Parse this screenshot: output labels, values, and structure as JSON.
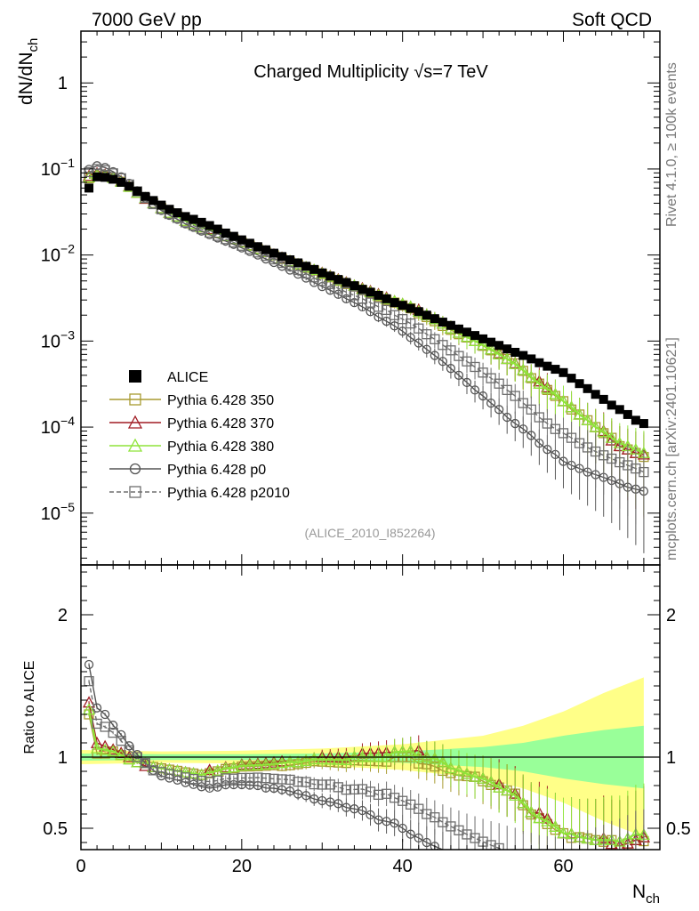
{
  "header": {
    "left": "7000 GeV pp",
    "right": "Soft QCD"
  },
  "side": {
    "rivet": "Rivet 4.1.0, ≥ 100k events",
    "mcplots": "mcplots.cern.ch [arXiv:2401.10621]"
  },
  "chart_data": [
    {
      "type": "scatter",
      "title_main": "Charged Multiplicity ",
      "title_sqrt": "√s",
      "title_rest": "=7 TeV",
      "ylabel_main": "dN/dN",
      "ylabel_sub": "ch",
      "yscale": "log",
      "ylim": [
        2.5e-06,
        4
      ],
      "xlim": [
        0,
        72
      ],
      "yticks": [
        {
          "v": 1e-05,
          "base": "10",
          "exp": "−5"
        },
        {
          "v": 0.0001,
          "base": "10",
          "exp": "−4"
        },
        {
          "v": 0.001,
          "base": "10",
          "exp": "−3"
        },
        {
          "v": 0.01,
          "base": "10",
          "exp": "−2"
        },
        {
          "v": 0.1,
          "base": "10",
          "exp": "−1"
        },
        {
          "v": 1,
          "base": "1",
          "exp": ""
        }
      ],
      "analysis_tag": "(ALICE_2010_I852264)",
      "legend": [
        {
          "name": "ALICE",
          "color": "#000000",
          "marker": "square-filled",
          "line": "none"
        },
        {
          "name": "Pythia 6.428 350",
          "color": "#a89a30",
          "marker": "square-open",
          "line": "solid"
        },
        {
          "name": "Pythia 6.428 370",
          "color": "#a01c24",
          "marker": "triangle-open",
          "line": "solid"
        },
        {
          "name": "Pythia 6.428 380",
          "color": "#8fe43a",
          "marker": "triangle-open",
          "line": "solid"
        },
        {
          "name": "Pythia 6.428 p0",
          "color": "#555555",
          "marker": "circle-open",
          "line": "solid"
        },
        {
          "name": "Pythia 6.428 p2010",
          "color": "#6e6e6e",
          "marker": "square-open",
          "line": "dashed"
        }
      ],
      "x": [
        1,
        2,
        3,
        4,
        5,
        6,
        7,
        8,
        9,
        10,
        11,
        12,
        13,
        14,
        15,
        16,
        17,
        18,
        19,
        20,
        21,
        22,
        23,
        24,
        25,
        26,
        27,
        28,
        29,
        30,
        31,
        32,
        33,
        34,
        35,
        36,
        37,
        38,
        39,
        40,
        41,
        42,
        43,
        44,
        45,
        46,
        47,
        48,
        49,
        50,
        51,
        52,
        53,
        54,
        55,
        56,
        57,
        58,
        59,
        60,
        61,
        62,
        63,
        64,
        65,
        66,
        67,
        68,
        69,
        70
      ],
      "series": [
        {
          "name": "ALICE",
          "values": [
            0.06,
            0.081,
            0.08,
            0.076,
            0.07,
            0.063,
            0.055,
            0.048,
            0.043,
            0.038,
            0.034,
            0.031,
            0.028,
            0.026,
            0.024,
            0.022,
            0.02,
            0.018,
            0.0165,
            0.015,
            0.0137,
            0.0125,
            0.0115,
            0.0105,
            0.0096,
            0.0088,
            0.0081,
            0.0074,
            0.0068,
            0.0062,
            0.0057,
            0.0052,
            0.0048,
            0.0044,
            0.004,
            0.0037,
            0.0034,
            0.0031,
            0.0028,
            0.0026,
            0.0024,
            0.0022,
            0.002,
            0.00182,
            0.00166,
            0.00152,
            0.00138,
            0.00127,
            0.00116,
            0.00106,
            0.00097,
            0.00089,
            0.00081,
            0.00074,
            0.00068,
            0.00062,
            0.00056,
            0.00051,
            0.00047,
            0.00043,
            0.00037,
            0.00032,
            0.00028,
            0.00024,
            0.00021,
            0.00018,
            0.00016,
            0.00014,
            0.00012,
            0.00011
          ]
        },
        {
          "name": "Pythia 6.428 350",
          "values": [
            0.078,
            0.083,
            0.082,
            0.079,
            0.071,
            0.062,
            0.053,
            0.046,
            0.04,
            0.035,
            0.031,
            0.028,
            0.025,
            0.023,
            0.021,
            0.0195,
            0.018,
            0.0165,
            0.0152,
            0.014,
            0.0128,
            0.0117,
            0.0108,
            0.0099,
            0.009,
            0.0083,
            0.0077,
            0.0071,
            0.0066,
            0.006,
            0.0055,
            0.005,
            0.0046,
            0.0043,
            0.0039,
            0.0036,
            0.0033,
            0.003,
            0.0028,
            0.0026,
            0.0024,
            0.0021,
            0.0019,
            0.0017,
            0.0015,
            0.00135,
            0.0012,
            0.0011,
            0.001,
            0.00088,
            0.00078,
            0.0007,
            0.00062,
            0.00055,
            0.00045,
            0.00037,
            0.00032,
            0.00027,
            0.00023,
            0.0002,
            0.00016,
            0.00014,
            0.00012,
            0.0001,
            8.5e-05,
            7.5e-05,
            6e-05,
            5.5e-05,
            5e-05,
            4.5e-05
          ]
        },
        {
          "name": "Pythia 6.428 370",
          "values": [
            0.083,
            0.089,
            0.086,
            0.08,
            0.072,
            0.063,
            0.053,
            0.045,
            0.04,
            0.035,
            0.031,
            0.028,
            0.025,
            0.023,
            0.021,
            0.02,
            0.018,
            0.0167,
            0.0153,
            0.0142,
            0.013,
            0.0119,
            0.011,
            0.0101,
            0.0093,
            0.0085,
            0.0078,
            0.0072,
            0.0067,
            0.0062,
            0.0057,
            0.0052,
            0.0048,
            0.0044,
            0.0041,
            0.0038,
            0.0035,
            0.0032,
            0.0029,
            0.0027,
            0.0025,
            0.0023,
            0.002,
            0.0018,
            0.0016,
            0.0014,
            0.00125,
            0.00112,
            0.001,
            0.0009,
            0.0008,
            0.00072,
            0.00062,
            0.00055,
            0.00046,
            0.00038,
            0.00034,
            0.00029,
            0.00024,
            0.0002,
            0.00017,
            0.00014,
            0.00012,
            0.0001,
            9e-05,
            7e-05,
            6e-05,
            5.5e-05,
            5e-05,
            4.8e-05
          ]
        },
        {
          "name": "Pythia 6.428 380",
          "values": [
            0.08,
            0.086,
            0.084,
            0.079,
            0.071,
            0.062,
            0.053,
            0.046,
            0.04,
            0.035,
            0.031,
            0.028,
            0.025,
            0.023,
            0.021,
            0.0196,
            0.0181,
            0.0166,
            0.0153,
            0.0141,
            0.0129,
            0.0118,
            0.0109,
            0.01,
            0.0092,
            0.0085,
            0.0078,
            0.0072,
            0.0067,
            0.0061,
            0.0056,
            0.0051,
            0.0047,
            0.0044,
            0.004,
            0.0037,
            0.0034,
            0.0031,
            0.0029,
            0.0027,
            0.0025,
            0.0022,
            0.002,
            0.0018,
            0.0016,
            0.0014,
            0.00125,
            0.00112,
            0.001,
            0.0009,
            0.0008,
            0.0007,
            0.00062,
            0.00054,
            0.00046,
            0.00038,
            0.00032,
            0.00028,
            0.00024,
            0.0002,
            0.00017,
            0.00014,
            0.00012,
            0.0001,
            8.8e-05,
            7.5e-05,
            6.5e-05,
            6e-05,
            5.5e-05,
            5e-05
          ]
        },
        {
          "name": "Pythia 6.428 p0",
          "values": [
            0.099,
            0.109,
            0.104,
            0.093,
            0.081,
            0.068,
            0.056,
            0.046,
            0.039,
            0.033,
            0.029,
            0.026,
            0.023,
            0.021,
            0.019,
            0.0172,
            0.0158,
            0.0145,
            0.0133,
            0.0121,
            0.011,
            0.01,
            0.009,
            0.0082,
            0.0074,
            0.0067,
            0.006,
            0.0054,
            0.0048,
            0.0043,
            0.0039,
            0.0035,
            0.0031,
            0.0028,
            0.0025,
            0.0022,
            0.0019,
            0.0017,
            0.0015,
            0.0013,
            0.0011,
            0.00095,
            0.0008,
            0.00068,
            0.00058,
            0.00048,
            0.0004,
            0.00033,
            0.00027,
            0.00023,
            0.00019,
            0.00016,
            0.00013,
            0.00011,
            9.5e-05,
            8e-05,
            6.5e-05,
            5.5e-05,
            4.8e-05,
            4e-05,
            3.6e-05,
            3.3e-05,
            3e-05,
            2.8e-05,
            2.6e-05,
            2.4e-05,
            2.2e-05,
            2e-05,
            1.9e-05,
            1.8e-05
          ]
        },
        {
          "name": "Pythia 6.428 p2010",
          "values": [
            0.092,
            0.1,
            0.097,
            0.089,
            0.078,
            0.066,
            0.055,
            0.046,
            0.039,
            0.034,
            0.03,
            0.027,
            0.024,
            0.022,
            0.02,
            0.0182,
            0.0167,
            0.0153,
            0.014,
            0.0128,
            0.0117,
            0.0107,
            0.0098,
            0.0089,
            0.0081,
            0.0074,
            0.0067,
            0.0061,
            0.0055,
            0.005,
            0.0046,
            0.0041,
            0.0037,
            0.0034,
            0.0031,
            0.0028,
            0.0025,
            0.0023,
            0.002,
            0.0018,
            0.0016,
            0.0014,
            0.0012,
            0.00105,
            0.0009,
            0.00078,
            0.00067,
            0.00058,
            0.0005,
            0.00043,
            0.00037,
            0.00032,
            0.00027,
            0.00023,
            0.00019,
            0.00016,
            0.00013,
            0.00011,
            9.5e-05,
            8.5e-05,
            7.5e-05,
            6.5e-05,
            5.8e-05,
            5.2e-05,
            4.7e-05,
            4.3e-05,
            3.9e-05,
            3.6e-05,
            3.3e-05,
            3e-05
          ]
        }
      ]
    },
    {
      "type": "line",
      "ylabel": "Ratio to ALICE",
      "xlabel_main": "N",
      "xlabel_sub": "ch",
      "ylim": [
        0.35,
        2.35
      ],
      "xlim": [
        0,
        72
      ],
      "xticks": [
        0,
        20,
        40,
        60
      ],
      "yticks": [
        0.5,
        1,
        2
      ],
      "reference_line": 1,
      "uncertainty_bands": {
        "x": [
          0,
          10,
          20,
          30,
          40,
          50,
          55,
          60,
          65,
          70
        ],
        "inner_half_width": [
          0.025,
          0.02,
          0.02,
          0.025,
          0.04,
          0.07,
          0.1,
          0.15,
          0.19,
          0.22
        ],
        "outer_half_width": [
          0.05,
          0.04,
          0.045,
          0.06,
          0.09,
          0.15,
          0.22,
          0.32,
          0.45,
          0.56
        ],
        "inner_color": "#99ff99",
        "outer_color": "#ffff88"
      }
    }
  ]
}
